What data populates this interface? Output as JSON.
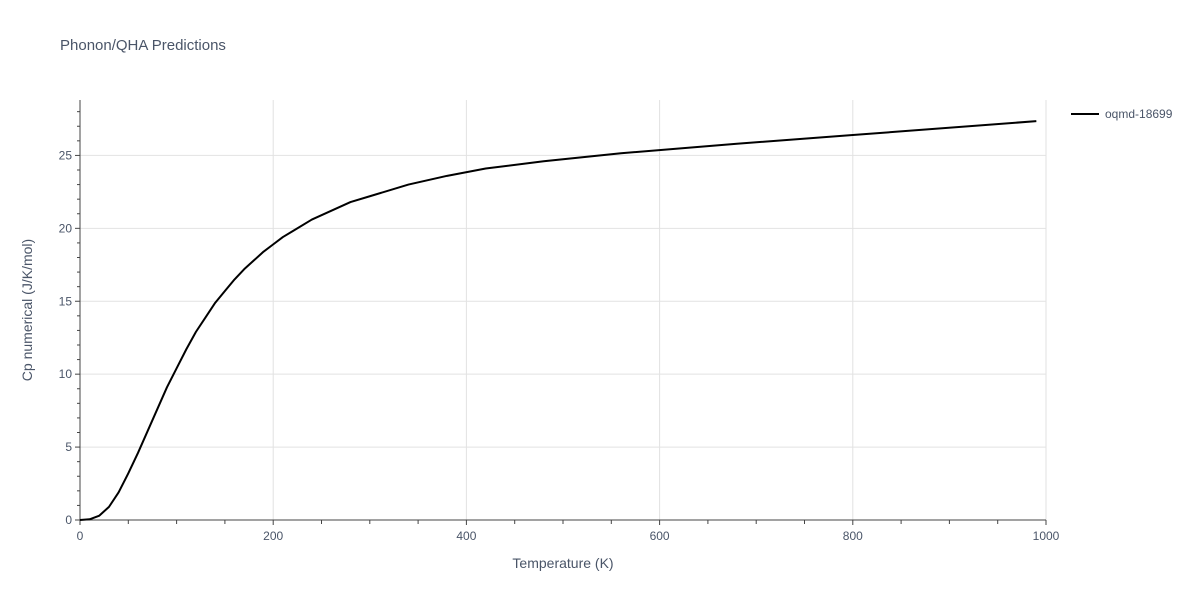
{
  "chart_data": {
    "type": "line",
    "title": "Phonon/QHA Predictions",
    "xlabel": "Temperature (K)",
    "ylabel": "Cp numerical (J/K/mol)",
    "xlim": [
      0,
      1000
    ],
    "ylim": [
      0,
      28.8
    ],
    "xticks": [
      0,
      200,
      400,
      600,
      800,
      1000
    ],
    "yticks": [
      0,
      5,
      10,
      15,
      20,
      25
    ],
    "grid": true,
    "legend_position": "top-right",
    "series": [
      {
        "name": "oqmd-18699",
        "color": "#000000",
        "x": [
          0,
          10,
          20,
          30,
          40,
          50,
          60,
          70,
          80,
          90,
          100,
          110,
          120,
          130,
          140,
          150,
          160,
          170,
          180,
          190,
          200,
          210,
          220,
          240,
          260,
          280,
          300,
          340,
          380,
          420,
          480,
          560,
          680,
          800,
          990
        ],
        "y": [
          0,
          0.05,
          0.3,
          0.9,
          1.9,
          3.2,
          4.6,
          6.1,
          7.6,
          9.1,
          10.4,
          11.7,
          12.9,
          13.9,
          14.9,
          15.7,
          16.5,
          17.2,
          17.8,
          18.4,
          18.9,
          19.4,
          19.8,
          20.6,
          21.2,
          21.8,
          22.2,
          23.0,
          23.6,
          24.1,
          24.6,
          25.15,
          25.8,
          26.4,
          27.35
        ]
      }
    ]
  }
}
